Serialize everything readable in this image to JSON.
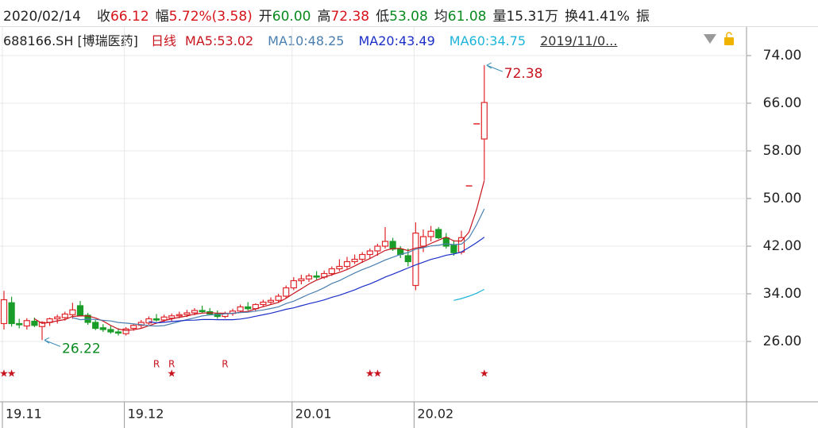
{
  "quote": {
    "date": "2020/02/14",
    "fields": [
      {
        "label": "收",
        "value": "66.12",
        "color": "#d7141a"
      },
      {
        "label": "幅",
        "value": "5.72%(3.58)",
        "color": "#d7141a"
      },
      {
        "label": "开",
        "value": "60.00",
        "color": "#0a8a1e"
      },
      {
        "label": "高",
        "value": "72.38",
        "color": "#d7141a"
      },
      {
        "label": "低",
        "value": "53.08",
        "color": "#0a8a1e"
      },
      {
        "label": "均",
        "value": "61.08",
        "color": "#0a8a1e"
      },
      {
        "label": "量",
        "value": "15.31万",
        "color": "#222222"
      },
      {
        "label": "换",
        "value": "41.41%",
        "color": "#222222"
      },
      {
        "label": "振",
        "value": "",
        "color": "#222222"
      }
    ]
  },
  "chart_data": {
    "type": "candlestick",
    "symbol": "688166.SH [博瑞医药]",
    "period": "日线",
    "date_range": "2019/11/0...",
    "categories": [
      "19.11",
      null,
      null,
      null,
      null,
      null,
      null,
      null,
      null,
      null,
      null,
      null,
      null,
      null,
      null,
      null,
      "19.12",
      null,
      null,
      null,
      null,
      null,
      null,
      null,
      null,
      null,
      null,
      null,
      null,
      null,
      null,
      null,
      null,
      null,
      null,
      null,
      null,
      null,
      "20.01",
      null,
      null,
      null,
      null,
      null,
      null,
      null,
      null,
      null,
      null,
      null,
      null,
      null,
      null,
      null,
      "20.02",
      null,
      null,
      null,
      null,
      null,
      null,
      null,
      null,
      null
    ],
    "open": [
      29.0,
      32.5,
      29.0,
      28.6,
      29.4,
      28.5,
      29.2,
      29.8,
      30.0,
      30.5,
      32.0,
      30.4,
      29.2,
      28.3,
      28.0,
      27.6,
      27.3,
      28.2,
      28.7,
      29.1,
      29.8,
      29.6,
      29.9,
      30.3,
      30.5,
      30.8,
      31.2,
      31.0,
      30.6,
      30.2,
      30.7,
      31.1,
      31.8,
      31.5,
      32.2,
      32.6,
      32.9,
      33.6,
      35.0,
      36.2,
      36.5,
      37.0,
      36.8,
      37.4,
      38.2,
      38.6,
      39.4,
      39.8,
      40.6,
      41.2,
      42.0,
      42.8,
      41.5,
      40.4,
      35.4,
      42.0,
      43.6,
      44.8,
      43.4,
      42.2,
      41.0,
      52.12,
      62.54,
      60.0
    ],
    "high": [
      34.5,
      33.5,
      29.8,
      29.9,
      30.0,
      29.4,
      30.0,
      30.5,
      31.0,
      32.5,
      32.8,
      30.8,
      29.6,
      28.9,
      28.6,
      28.2,
      28.4,
      29.0,
      29.6,
      30.2,
      30.6,
      30.5,
      30.7,
      31.0,
      31.3,
      31.6,
      32.0,
      31.6,
      31.2,
      31.0,
      31.5,
      32.2,
      32.6,
      32.4,
      33.0,
      33.4,
      34.0,
      35.4,
      36.8,
      37.2,
      37.4,
      37.8,
      37.9,
      38.6,
      39.8,
      40.2,
      40.6,
      41.0,
      41.6,
      42.4,
      45.2,
      43.4,
      42.0,
      41.6,
      46.0,
      44.8,
      45.4,
      45.2,
      44.2,
      43.0,
      44.6,
      52.12,
      62.54,
      72.38
    ],
    "low": [
      28.0,
      28.5,
      28.2,
      28.0,
      28.4,
      26.22,
      28.6,
      29.0,
      29.5,
      29.8,
      30.2,
      28.8,
      27.9,
      27.6,
      27.3,
      27.0,
      27.0,
      27.8,
      28.3,
      28.8,
      29.3,
      29.2,
      29.4,
      29.9,
      30.1,
      30.4,
      30.8,
      30.4,
      29.8,
      29.9,
      30.3,
      30.8,
      31.2,
      31.0,
      31.8,
      32.2,
      32.5,
      33.2,
      34.6,
      35.6,
      36.0,
      36.4,
      36.5,
      37.0,
      37.8,
      38.2,
      39.0,
      39.2,
      40.0,
      40.4,
      41.6,
      41.2,
      40.0,
      38.6,
      34.6,
      41.0,
      42.8,
      43.2,
      41.6,
      40.4,
      40.6,
      52.12,
      62.54,
      53.08
    ],
    "close": [
      33.0,
      29.0,
      28.8,
      29.5,
      28.7,
      29.2,
      29.8,
      30.1,
      30.6,
      31.3,
      30.4,
      29.2,
      28.2,
      28.0,
      27.6,
      27.4,
      28.1,
      28.7,
      29.2,
      29.8,
      29.6,
      30.1,
      30.3,
      30.5,
      30.8,
      31.2,
      31.0,
      30.6,
      30.2,
      30.7,
      31.1,
      31.8,
      31.5,
      32.2,
      32.6,
      32.9,
      33.6,
      35.0,
      36.2,
      36.5,
      37.0,
      36.8,
      37.4,
      38.2,
      38.6,
      39.4,
      39.8,
      40.6,
      41.2,
      42.0,
      42.8,
      41.5,
      40.6,
      39.4,
      44.2,
      43.6,
      44.5,
      43.4,
      42.0,
      40.9,
      43.43,
      52.12,
      62.54,
      66.12
    ],
    "up_color": "#e0262b",
    "down_color": "#1a9c29",
    "series": [
      {
        "name": "MA5:53.02",
        "color": "#c8141e",
        "values": [
          null,
          null,
          null,
          null,
          29.8,
          29.04,
          29.2,
          29.46,
          29.68,
          30.2,
          30.28,
          30.3,
          29.94,
          29.42,
          28.68,
          28.08,
          27.86,
          27.96,
          28.2,
          28.64,
          29.08,
          29.48,
          29.8,
          30.06,
          30.26,
          30.58,
          30.76,
          30.82,
          30.76,
          30.74,
          30.72,
          30.88,
          31.06,
          31.46,
          31.84,
          32.2,
          32.56,
          33.26,
          34.06,
          34.84,
          35.66,
          36.3,
          36.78,
          37.18,
          37.6,
          38.08,
          38.68,
          39.32,
          39.92,
          40.6,
          41.28,
          41.62,
          41.62,
          41.26,
          41.7,
          41.86,
          42.46,
          43.02,
          43.54,
          42.88,
          42.85,
          44.37,
          48.2,
          53.02
        ]
      },
      {
        "name": "MA10:48.25",
        "color": "#4a7fb0",
        "values": [
          null,
          null,
          null,
          null,
          null,
          null,
          null,
          null,
          null,
          30.0,
          29.66,
          29.75,
          29.7,
          29.55,
          29.44,
          29.18,
          29.08,
          28.95,
          28.81,
          28.66,
          28.58,
          28.67,
          29.0,
          29.35,
          29.67,
          29.96,
          30.28,
          30.44,
          30.51,
          30.66,
          30.74,
          30.85,
          30.91,
          31.1,
          31.29,
          31.54,
          31.81,
          32.36,
          32.76,
          33.34,
          33.93,
          34.43,
          35.02,
          35.72,
          36.22,
          36.87,
          37.49,
          38.05,
          38.55,
          39.1,
          39.68,
          40.15,
          40.62,
          40.93,
          41.49,
          41.74,
          42.04,
          42.14,
          42.4,
          42.25,
          42.35,
          43.42,
          45.61,
          48.25
        ]
      },
      {
        "name": "MA20:43.49",
        "color": "#1b2fc8",
        "values": [
          null,
          null,
          null,
          null,
          null,
          null,
          null,
          null,
          null,
          null,
          null,
          null,
          null,
          null,
          null,
          null,
          null,
          null,
          null,
          29.33,
          29.12,
          29.21,
          29.35,
          29.45,
          29.56,
          29.57,
          29.68,
          29.7,
          29.66,
          29.66,
          29.66,
          29.76,
          29.96,
          30.23,
          30.48,
          30.75,
          31.05,
          31.4,
          31.64,
          32.0,
          32.34,
          32.64,
          32.97,
          33.41,
          33.76,
          34.21,
          34.65,
          35.21,
          35.66,
          36.22,
          36.81,
          37.29,
          37.82,
          38.33,
          38.86,
          39.31,
          39.77,
          40.1,
          40.48,
          40.68,
          41.02,
          41.79,
          42.6,
          43.49
        ]
      },
      {
        "name": "MA60:34.75",
        "color": "#1cb4d8",
        "values": [
          null,
          null,
          null,
          null,
          null,
          null,
          null,
          null,
          null,
          null,
          null,
          null,
          null,
          null,
          null,
          null,
          null,
          null,
          null,
          null,
          null,
          null,
          null,
          null,
          null,
          null,
          null,
          null,
          null,
          null,
          null,
          null,
          null,
          null,
          null,
          null,
          null,
          null,
          null,
          null,
          null,
          null,
          null,
          null,
          null,
          null,
          null,
          null,
          null,
          null,
          null,
          null,
          null,
          null,
          null,
          null,
          null,
          null,
          null,
          32.9,
          33.2,
          33.6,
          34.1,
          34.75
        ]
      }
    ],
    "ylim": [
      16,
      78
    ],
    "yticks": [
      {
        "value": 26,
        "label": "26.00"
      },
      {
        "value": 34,
        "label": "34.00"
      },
      {
        "value": 42,
        "label": "42.00"
      },
      {
        "value": 50,
        "label": "50.00"
      },
      {
        "value": 58,
        "label": "58.00"
      },
      {
        "value": 66,
        "label": "66.00"
      },
      {
        "value": 74,
        "label": "74.00"
      }
    ],
    "grid": true,
    "annotations": [
      {
        "text": "72.38",
        "value": 72.38,
        "index": 63,
        "color": "#c8141e"
      },
      {
        "text": "26.22",
        "value": 26.22,
        "index": 5,
        "color": "#0a8a1e"
      }
    ],
    "signals": [
      {
        "index": 0,
        "label": "★"
      },
      {
        "index": 1,
        "label": "★"
      },
      {
        "index": 22,
        "label": "★"
      },
      {
        "index": 48,
        "label": "★"
      },
      {
        "index": 49,
        "label": "★"
      },
      {
        "index": 63,
        "label": "★"
      },
      {
        "index": 20,
        "label": "R"
      },
      {
        "index": 22,
        "label": "R"
      },
      {
        "index": 29,
        "label": "R"
      }
    ]
  }
}
